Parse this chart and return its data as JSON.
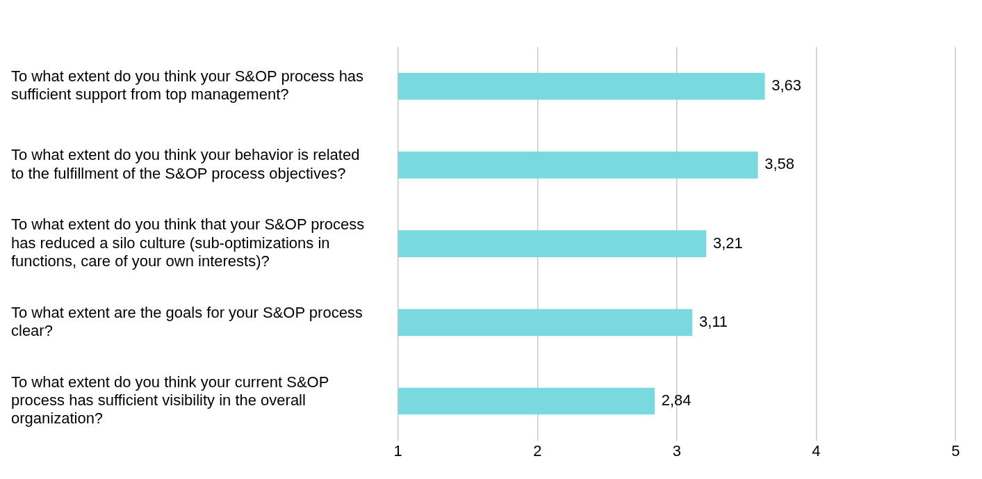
{
  "chart_data": {
    "type": "bar",
    "orientation": "horizontal",
    "categories": [
      "To what extent do you think your S&OP process has sufficient support from top management?",
      "To what extent do you think your behavior is related to the fulfillment of the S&OP process objectives?",
      "To what extent do you think that your S&OP process has reduced a silo culture (sub-optimizations in functions, care of your own interests)?",
      "To what extent are the goals for your S&OP process clear?",
      "To what extent do you think your current S&OP process has sufficient visibility in the overall organization?"
    ],
    "values": [
      3.63,
      3.58,
      3.21,
      3.11,
      2.84
    ],
    "value_labels": [
      "3,63",
      "3,58",
      "3,21",
      "3,11",
      "2,84"
    ],
    "color": "#7ad9de",
    "xlim": [
      1,
      5
    ],
    "xticks": [
      1,
      2,
      3,
      4,
      5
    ],
    "grid": "x"
  }
}
